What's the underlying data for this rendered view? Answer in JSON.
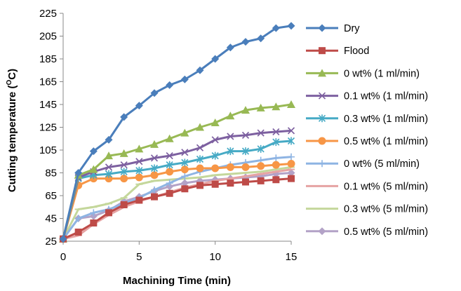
{
  "chart_data": {
    "type": "line",
    "title": "",
    "xlabel": "Machining Time (min)",
    "ylabel_main": "Cutting temperature (",
    "ylabel_sup": "O",
    "ylabel_tail": "C)",
    "xlim": [
      0,
      15
    ],
    "ylim": [
      25,
      225
    ],
    "xticks": [
      0,
      5,
      10,
      15
    ],
    "yticks": [
      25,
      45,
      65,
      85,
      105,
      125,
      145,
      165,
      185,
      205,
      225
    ],
    "grid": false,
    "legend_position": "right",
    "x": [
      0,
      1,
      2,
      3,
      4,
      5,
      6,
      7,
      8,
      9,
      10,
      11,
      12,
      13,
      14,
      15
    ],
    "series": [
      {
        "name": "Dry",
        "color": "#4a7ebb",
        "marker": "diamond",
        "values": [
          27,
          85,
          104,
          114,
          134,
          144,
          155,
          162,
          167,
          175,
          185,
          195,
          200,
          203,
          212,
          214
        ]
      },
      {
        "name": "Flood",
        "color": "#be4b48",
        "marker": "square",
        "values": [
          27,
          33,
          41,
          50,
          57,
          61,
          64,
          67,
          71,
          74,
          75,
          76,
          77,
          78,
          79,
          80
        ]
      },
      {
        "name": "0 wt% (1 ml/min)",
        "color": "#98b954",
        "marker": "triangle",
        "values": [
          27,
          83,
          88,
          100,
          102,
          106,
          110,
          115,
          120,
          125,
          129,
          135,
          140,
          142,
          143,
          145
        ]
      },
      {
        "name": "0.1 wt% (1 ml/min)",
        "color": "#7d60a0",
        "marker": "x",
        "values": [
          27,
          81,
          86,
          90,
          92,
          95,
          98,
          100,
          103,
          107,
          114,
          117,
          118,
          120,
          121,
          122
        ]
      },
      {
        "name": "0.3 wt% (1 ml/min)",
        "color": "#46aac5",
        "marker": "star",
        "values": [
          27,
          80,
          83,
          84,
          86,
          87,
          89,
          92,
          94,
          97,
          100,
          104,
          104,
          106,
          112,
          113
        ]
      },
      {
        "name": "0.5 wt% (1 ml/min)",
        "color": "#f79646",
        "marker": "circle",
        "values": [
          27,
          74,
          80,
          80,
          80,
          81,
          83,
          86,
          88,
          89,
          89,
          90,
          90,
          91,
          92,
          93
        ]
      },
      {
        "name": "0 wt% (5 ml/min)",
        "color": "#8eb4e3",
        "marker": "plus",
        "values": [
          27,
          45,
          50,
          53,
          58,
          63,
          70,
          76,
          82,
          86,
          89,
          92,
          94,
          96,
          98,
          99
        ]
      },
      {
        "name": "0.1 wt% (5 ml/min)",
        "color": "#e6a3a3",
        "marker": "dash",
        "values": [
          27,
          30,
          40,
          48,
          55,
          60,
          64,
          68,
          72,
          75,
          78,
          80,
          82,
          84,
          86,
          88
        ]
      },
      {
        "name": "0.3 wt% (5 ml/min)",
        "color": "#c4d79b",
        "marker": "dash",
        "values": [
          27,
          53,
          55,
          58,
          63,
          75,
          78,
          79,
          80,
          81,
          83,
          84,
          85,
          86,
          88,
          90
        ]
      },
      {
        "name": "0.5 wt% (5 ml/min)",
        "color": "#b3a2c7",
        "marker": "diamond",
        "values": [
          27,
          45,
          47,
          52,
          60,
          64,
          69,
          73,
          76,
          78,
          79,
          80,
          81,
          82,
          84,
          85
        ]
      }
    ]
  }
}
